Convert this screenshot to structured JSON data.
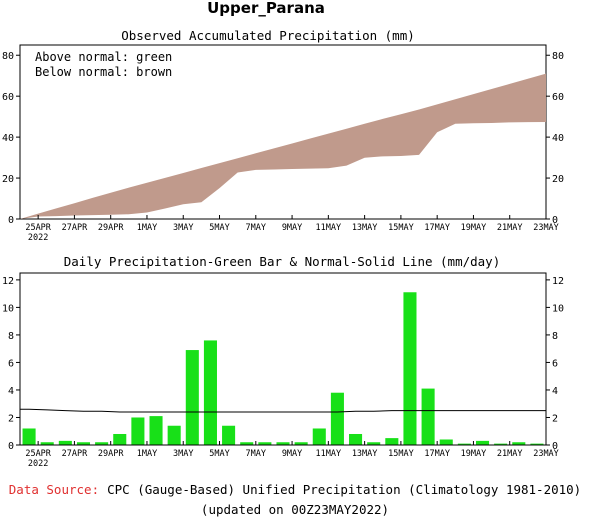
{
  "title": "Upper_Parana",
  "top_panel": {
    "title": "Observed Accumulated Precipitation (mm)",
    "legend_above": "Above normal: green",
    "legend_below": "Below normal: brown"
  },
  "bottom_panel": {
    "title": "Daily Precipitation-Green Bar & Normal-Solid Line (mm/day)"
  },
  "footer": {
    "source_label": "Data Source:",
    "source_text": "CPC (Gauge-Based) Unified Precipitation (Climatology 1981-2010)",
    "updated": "(updated on 00Z23MAY2022)"
  },
  "colors": {
    "deficit_fill": "#c09a8c",
    "bar_fill": "#18e018",
    "source_label": "#e03030"
  },
  "chart_data": [
    {
      "type": "area",
      "title": "Observed Accumulated Precipitation (mm)",
      "ylim": [
        0,
        85
      ],
      "yticks": [
        0,
        20,
        40,
        60,
        80
      ],
      "x_tick_labels": [
        "25APR",
        "27APR",
        "29APR",
        "1MAY",
        "3MAY",
        "5MAY",
        "7MAY",
        "9MAY",
        "11MAY",
        "13MAY",
        "15MAY",
        "17MAY",
        "19MAY",
        "21MAY",
        "23MAY"
      ],
      "x_year_label": "2022",
      "series": [
        {
          "name": "Observed",
          "values": [
            1.2,
            1.4,
            1.7,
            1.9,
            2.1,
            2.3,
            3.2,
            5.1,
            7.2,
            8.2,
            15.1,
            22.7,
            24.0,
            24.2,
            24.4,
            24.6,
            24.8,
            26.1,
            29.9,
            30.6,
            30.8,
            31.3,
            42.4,
            46.5,
            46.8,
            46.9,
            47.2,
            47.3,
            47.4
          ]
        },
        {
          "name": "Normal",
          "values": [
            2.6,
            5.2,
            7.7,
            10.3,
            12.8,
            15.3,
            17.7,
            20.1,
            22.5,
            24.9,
            27.3,
            29.7,
            32.1,
            34.5,
            36.9,
            39.3,
            41.7,
            44.1,
            46.5,
            48.9,
            51.2,
            53.5,
            56.0,
            58.5,
            61.0,
            63.5,
            66.0,
            68.5,
            71.0
          ]
        }
      ]
    },
    {
      "type": "bar",
      "title": "Daily Precipitation-Green Bar & Normal-Solid Line (mm/day)",
      "ylim": [
        0,
        12.5
      ],
      "yticks": [
        0,
        2,
        4,
        6,
        8,
        10,
        12
      ],
      "x_tick_labels": [
        "25APR",
        "27APR",
        "29APR",
        "1MAY",
        "3MAY",
        "5MAY",
        "7MAY",
        "9MAY",
        "11MAY",
        "13MAY",
        "15MAY",
        "17MAY",
        "19MAY",
        "21MAY",
        "23MAY"
      ],
      "x_year_label": "2022",
      "values": [
        1.2,
        0.2,
        0.3,
        0.2,
        0.2,
        0.8,
        2.0,
        2.1,
        1.4,
        6.9,
        7.6,
        1.4,
        0.2,
        0.2,
        0.2,
        0.2,
        1.2,
        3.8,
        0.8,
        0.2,
        0.5,
        11.1,
        4.1,
        0.4,
        0.1,
        0.3,
        0.1,
        0.2,
        0.1
      ],
      "normal": [
        2.6,
        2.55,
        2.5,
        2.45,
        2.45,
        2.4,
        2.4,
        2.4,
        2.4,
        2.4,
        2.4,
        2.4,
        2.4,
        2.4,
        2.4,
        2.4,
        2.4,
        2.4,
        2.45,
        2.45,
        2.5,
        2.5,
        2.5,
        2.5,
        2.5,
        2.5,
        2.5,
        2.5,
        2.5
      ]
    }
  ]
}
